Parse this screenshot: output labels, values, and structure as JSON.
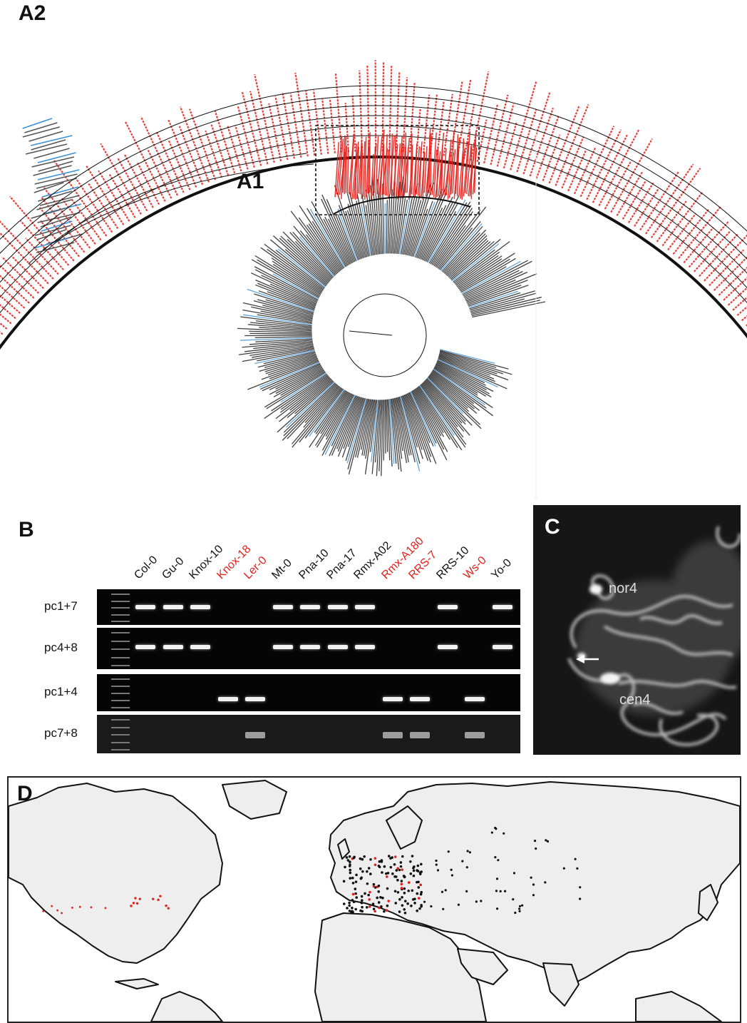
{
  "panel_labels": {
    "a2": "A2",
    "a1": "A1",
    "b": "B",
    "c": "C",
    "d": "D"
  },
  "gel": {
    "lanes": [
      {
        "name": "Col-0",
        "red": false
      },
      {
        "name": "Gu-0",
        "red": false
      },
      {
        "name": "Knox-10",
        "red": false
      },
      {
        "name": "Knox-18",
        "red": true
      },
      {
        "name": "Ler-0",
        "red": true
      },
      {
        "name": "Mt-0",
        "red": false
      },
      {
        "name": "Pna-10",
        "red": false
      },
      {
        "name": "Pna-17",
        "red": false
      },
      {
        "name": "Rmx-A02",
        "red": false
      },
      {
        "name": "Rmx-A180",
        "red": true
      },
      {
        "name": "RRS-7",
        "red": true
      },
      {
        "name": "RRS-10",
        "red": false
      },
      {
        "name": "Ws-0",
        "red": true
      },
      {
        "name": "Yo-0",
        "red": false
      }
    ],
    "rows": [
      {
        "label": "pc1+7",
        "bands": [
          1,
          1,
          1,
          0,
          0,
          1,
          1,
          1,
          1,
          0,
          0,
          1,
          0,
          1
        ]
      },
      {
        "label": "pc4+8",
        "bands": [
          1,
          1,
          1,
          0,
          0,
          1,
          1,
          1,
          1,
          0,
          0,
          1,
          0,
          1
        ]
      },
      {
        "label": "pc1+4",
        "bands": [
          0,
          0,
          0,
          1,
          1,
          0,
          0,
          0,
          0,
          1,
          1,
          0,
          1,
          0
        ]
      },
      {
        "label": "pc7+8",
        "bands": [
          0,
          0,
          0,
          0,
          1,
          0,
          0,
          0,
          0,
          1,
          1,
          0,
          1,
          0
        ]
      }
    ]
  },
  "microscopy": {
    "label_nor": "nor4",
    "label_cen": "cen4"
  },
  "colors": {
    "red": "#e3211c",
    "blue": "#3a8fd6",
    "black": "#111111"
  }
}
